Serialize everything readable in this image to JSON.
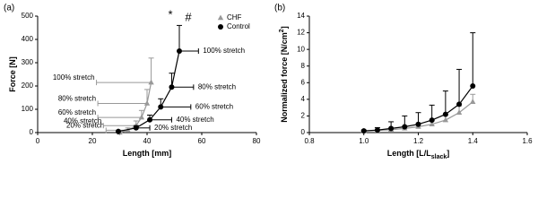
{
  "chart_data": [
    {
      "type": "line",
      "panel_label": "(a)",
      "x_label": "Length [mm]",
      "y_label": "Force [N]",
      "xlim": [
        0,
        80
      ],
      "xticks": [
        0,
        20,
        40,
        60,
        80
      ],
      "ylim": [
        0,
        500
      ],
      "yticks": [
        0,
        100,
        200,
        300,
        400,
        500
      ],
      "legend": "upper right",
      "annotations": [
        "*",
        "#"
      ],
      "series": [
        {
          "name": "CHF",
          "color": "#999999",
          "marker": "triangle",
          "xerr_direction": "left",
          "x": [
            30,
            33,
            36,
            38,
            40,
            41.5
          ],
          "values": [
            0,
            10,
            30,
            65,
            125,
            215
          ],
          "xerr": [
            0,
            8,
            12,
            16,
            18,
            20
          ],
          "yerr": [
            0,
            10,
            20,
            30,
            60,
            105
          ],
          "point_labels": [
            null,
            "20% stretch",
            "40% stretch",
            "60% stretch",
            "80% stretch",
            "100% stretch"
          ]
        },
        {
          "name": "Control",
          "color": "#000000",
          "marker": "circle",
          "xerr_direction": "right",
          "x": [
            29.5,
            36,
            41,
            45,
            49,
            51.8
          ],
          "values": [
            5,
            20,
            55,
            110,
            195,
            350
          ],
          "xerr": [
            0,
            5,
            8,
            11,
            8,
            7
          ],
          "yerr": [
            0,
            10,
            20,
            35,
            60,
            110
          ],
          "point_labels": [
            null,
            "20% stretch",
            "40% stretch",
            "60% stretch",
            "80% stretch",
            "100% stretch"
          ]
        }
      ]
    },
    {
      "type": "line",
      "panel_label": "(b)",
      "x_label": "Length [L/L",
      "x_label_sub": "slack",
      "x_label_end": "]",
      "y_label": "Normalized force [N/cm",
      "y_label_sup": "2",
      "y_label_end": "]",
      "xlim": [
        0.8,
        1.6
      ],
      "xticks": [
        {
          "value": 0.8,
          "label": "0.8"
        },
        {
          "value": 1,
          "label": "1.0"
        },
        {
          "value": 1.2,
          "label": "1.2"
        },
        {
          "value": 1.4,
          "label": "1.4"
        },
        {
          "value": 1.6,
          "label": "1.6"
        }
      ],
      "ylim": [
        0,
        14
      ],
      "yticks": [
        0,
        2,
        4,
        6,
        8,
        10,
        12,
        14
      ],
      "x": [
        1,
        1.05,
        1.1,
        1.15,
        1.2,
        1.25,
        1.3,
        1.35,
        1.4
      ],
      "series": [
        {
          "color": "#999999",
          "marker": "triangle",
          "values": [
            0.2,
            0.25,
            0.35,
            0.5,
            0.7,
            1,
            1.5,
            2.4,
            3.7
          ],
          "yerr": [
            0.1,
            0.15,
            0.2,
            0.3,
            0.4,
            0.5,
            0.6,
            0.8,
            0.9
          ]
        },
        {
          "color": "#000000",
          "marker": "circle",
          "values": [
            0.2,
            0.3,
            0.5,
            0.7,
            1,
            1.5,
            2.2,
            3.4,
            5.6
          ],
          "yerr": [
            0.1,
            0.3,
            0.8,
            1.3,
            1.4,
            1.8,
            2.8,
            4.2,
            6.4
          ]
        }
      ]
    }
  ]
}
